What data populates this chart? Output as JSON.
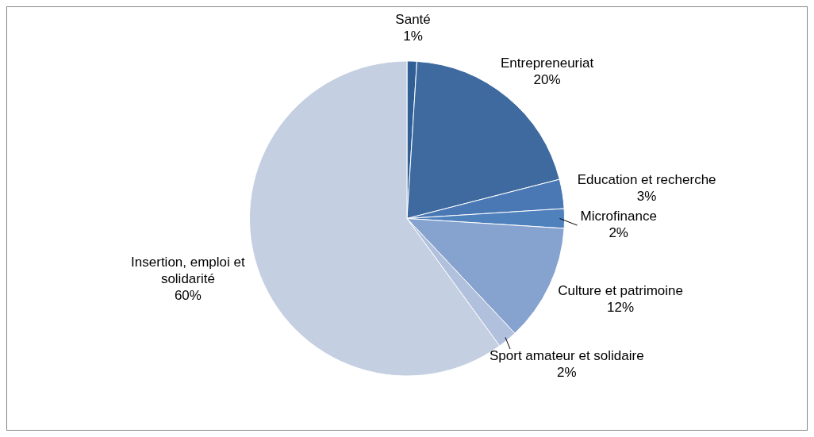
{
  "chart_data": {
    "type": "pie",
    "categories": [
      "Santé",
      "Entrepreneuriat",
      "Education et recherche",
      "Microfinance",
      "Culture et patrimoine",
      "Sport amateur et solidaire",
      "Insertion, emploi et solidarité"
    ],
    "values": [
      1,
      20,
      3,
      2,
      12,
      2,
      60
    ],
    "value_labels": [
      "1%",
      "20%",
      "3%",
      "2%",
      "12%",
      "2%",
      "60%"
    ],
    "colors": [
      "#2f5f95",
      "#3e6a9f",
      "#4a78b4",
      "#4f81bd",
      "#86a2cf",
      "#b1c0dc",
      "#c4cfe2"
    ],
    "legend": false
  }
}
